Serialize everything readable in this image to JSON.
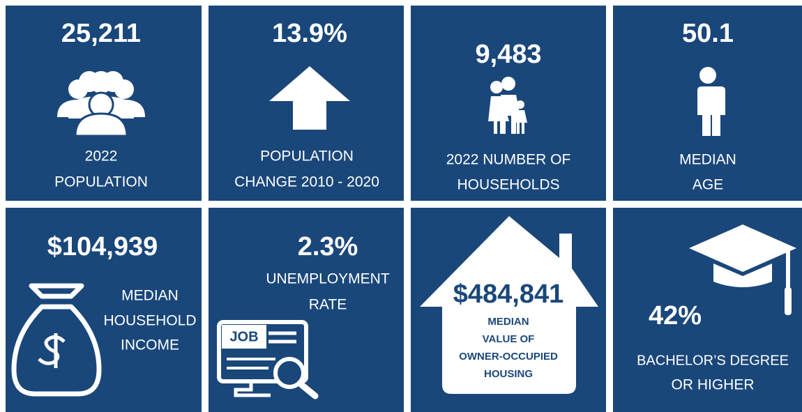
{
  "tiles": [
    {
      "value": "25,211",
      "label": [
        "2022",
        "POPULATION"
      ]
    },
    {
      "value": "13.9%",
      "label": [
        "POPULATION",
        "CHANGE 2010 - 2020"
      ]
    },
    {
      "value": "9,483",
      "label": [
        "2022 NUMBER OF",
        "HOUSEHOLDS"
      ]
    },
    {
      "value": "50.1",
      "label": [
        "MEDIAN",
        "AGE"
      ]
    },
    {
      "value": "$104,939",
      "label": [
        "MEDIAN",
        "HOUSEHOLD",
        "INCOME"
      ]
    },
    {
      "value": "2.3%",
      "label": [
        "UNEMPLOYMENT",
        "RATE"
      ],
      "icon_text": "JOB"
    },
    {
      "value": "$484,841",
      "label": [
        "MEDIAN",
        "VALUE OF",
        "OWNER-OCCUPIED",
        "HOUSING"
      ]
    },
    {
      "value": "42%",
      "label": [
        "BACHELOR’S DEGREE",
        "OR HIGHER"
      ]
    }
  ]
}
